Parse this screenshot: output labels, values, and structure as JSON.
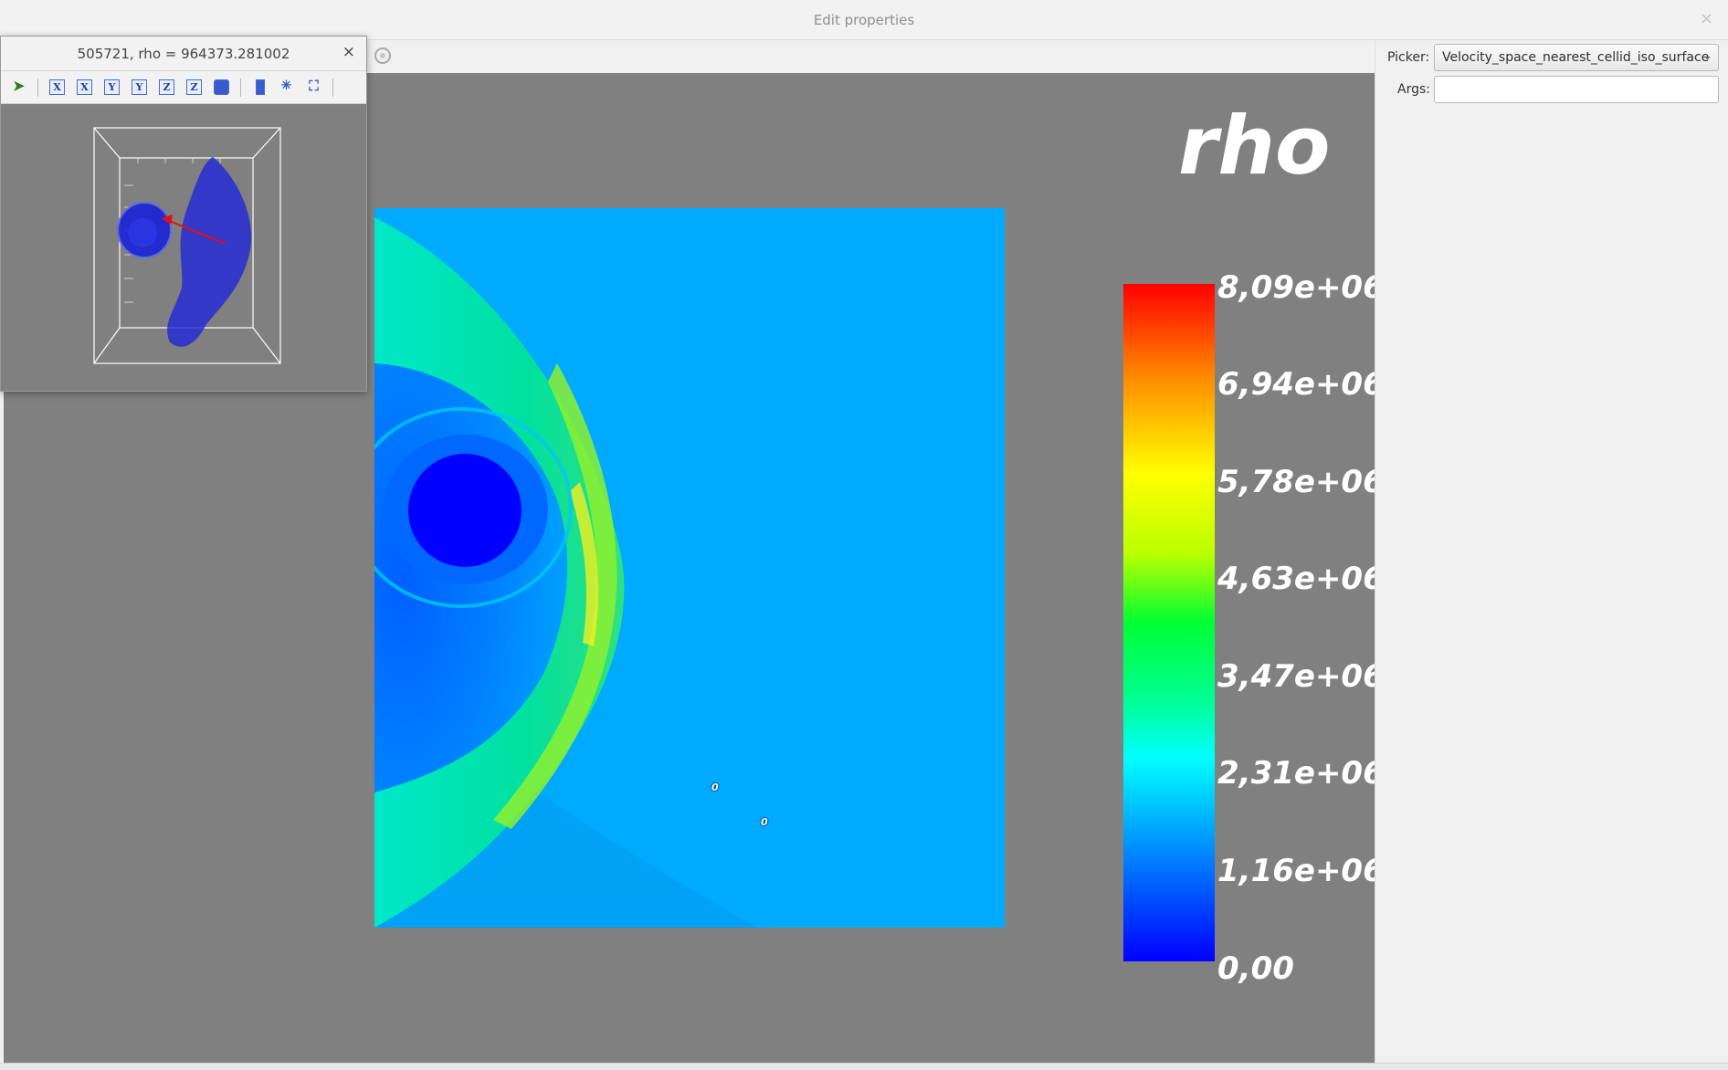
{
  "window": {
    "title": "Edit properties",
    "close_glyph": "×"
  },
  "float_window": {
    "title": "505721, rho = 964373.281002",
    "close_glyph": "×",
    "toolbar": [
      {
        "name": "pick-arrow-icon",
        "glyph": "➤"
      },
      {
        "name": "view-plus-x-icon",
        "glyph": "X"
      },
      {
        "name": "view-minus-x-icon",
        "glyph": "X"
      },
      {
        "name": "view-plus-y-icon",
        "glyph": "Y"
      },
      {
        "name": "view-minus-y-icon",
        "glyph": "Y"
      },
      {
        "name": "view-plus-z-icon",
        "glyph": "Z"
      },
      {
        "name": "view-minus-z-icon",
        "glyph": "Z"
      },
      {
        "name": "isometric-view-icon",
        "glyph": ""
      },
      {
        "name": "color-legend-icon",
        "glyph": ""
      },
      {
        "name": "orientation-axes-icon",
        "glyph": "✳"
      },
      {
        "name": "zoom-fit-icon",
        "glyph": "⛶"
      }
    ]
  },
  "right_panel": {
    "picker_label": "Picker:",
    "picker_value": "Velocity_space_nearest_cellid_iso_surface",
    "picker_chevron": "⌄",
    "args_label": "Args:",
    "args_value": ""
  },
  "colorbar": {
    "title": "rho",
    "labels": [
      "8,09e+06",
      "6,94e+06",
      "5,78e+06",
      "4,63e+06",
      "3,47e+06",
      "2,31e+06",
      "1,16e+06",
      "0,00"
    ],
    "colors": {
      "max": "#ff0000",
      "mid": "#00ff33",
      "min": "#0000ff"
    }
  },
  "plot": {
    "markers": [
      "0",
      "0"
    ],
    "background_color": "#00aaff",
    "planet_color": "#0000ff"
  }
}
